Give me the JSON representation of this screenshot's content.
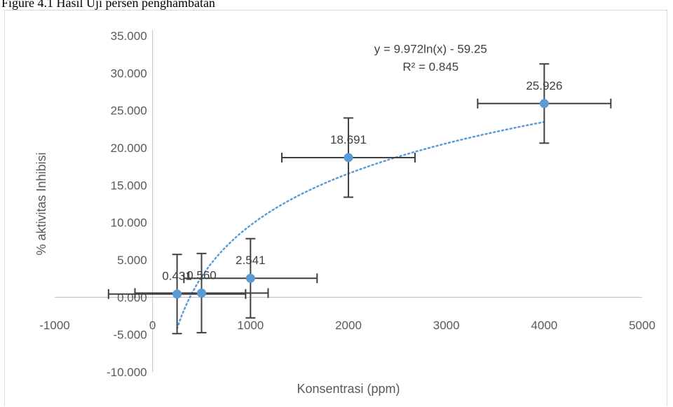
{
  "caption": "Figure 4.1 Hasil Uji persen penghambatan",
  "chart_data": {
    "type": "scatter",
    "xlabel": "Konsentrasi (ppm)",
    "ylabel": "% aktivitas Inhibisi",
    "xlim": [
      -1000,
      5000
    ],
    "ylim": [
      -10,
      35
    ],
    "x_ticks": [
      -1000,
      0,
      1000,
      2000,
      3000,
      4000,
      5000
    ],
    "x_tick_labels": [
      "-1000",
      "0",
      "1000",
      "2000",
      "3000",
      "4000",
      "5000"
    ],
    "y_ticks": [
      -10,
      -5,
      0,
      5,
      10,
      15,
      20,
      25,
      30,
      35
    ],
    "y_tick_labels": [
      "-10.000",
      "-5.000",
      "0.000",
      "5.000",
      "10.000",
      "15.000",
      "20.000",
      "25.000",
      "30.000",
      "35.000"
    ],
    "grid": false,
    "points": [
      {
        "x": 250,
        "y": 0.431,
        "label": "0.431",
        "x_err": 700,
        "y_err": 5.3
      },
      {
        "x": 500,
        "y": 0.56,
        "label": "0.560",
        "x_err": 680,
        "y_err": 5.3
      },
      {
        "x": 1000,
        "y": 2.541,
        "label": "2.541",
        "x_err": 680,
        "y_err": 5.3
      },
      {
        "x": 2000,
        "y": 18.691,
        "label": "18.691",
        "x_err": 680,
        "y_err": 5.3
      },
      {
        "x": 4000,
        "y": 25.926,
        "label": "25.926",
        "x_err": 680,
        "y_err": 5.3
      }
    ],
    "trendline": {
      "type": "logarithmic",
      "a": 9.972,
      "b": -59.25,
      "x_range": [
        250,
        4000
      ],
      "equation": "y = 9.972ln(x) - 59.25",
      "r_squared": "R² = 0.845"
    },
    "colors": {
      "marker": "#5b9bd5",
      "trendline": "#5b9bd5",
      "error_bar": "#404040",
      "axis": "#bfbfbf"
    }
  }
}
